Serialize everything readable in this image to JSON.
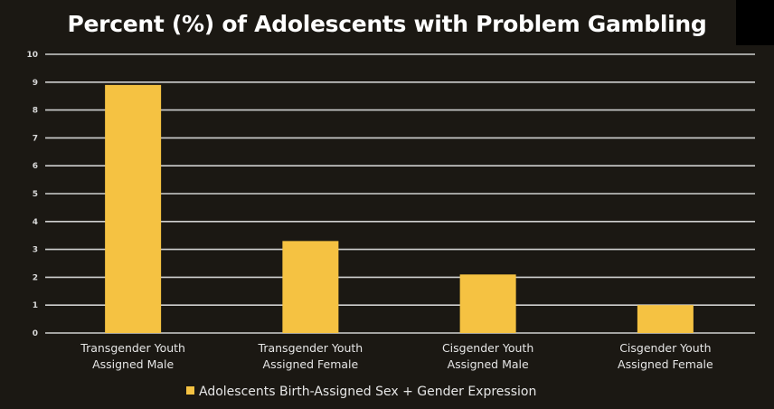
{
  "chart_data": {
    "type": "bar",
    "title": "Percent (%) of Adolescents with Problem Gambling",
    "categories": [
      [
        "Transgender Youth",
        "Assigned Male"
      ],
      [
        "Transgender Youth",
        "Assigned Female"
      ],
      [
        "Cisgender Youth",
        "Assigned Male"
      ],
      [
        "Cisgender Youth",
        "Assigned Female"
      ]
    ],
    "series": [
      {
        "name": "Adolescents Birth-Assigned Sex + Gender Expression",
        "values": [
          8.9,
          3.3,
          2.1,
          1.0
        ],
        "color": "#f5c242"
      }
    ],
    "ylim": [
      0,
      10
    ],
    "yticks": [
      "0",
      "1",
      "2",
      "3",
      "4",
      "5",
      "6",
      "7",
      "8",
      "9",
      "10"
    ],
    "grid": true,
    "legend": "bottom",
    "colors": {
      "background": "#1b1813",
      "grid": "#d0d0d0",
      "text": "#ffffff"
    }
  }
}
